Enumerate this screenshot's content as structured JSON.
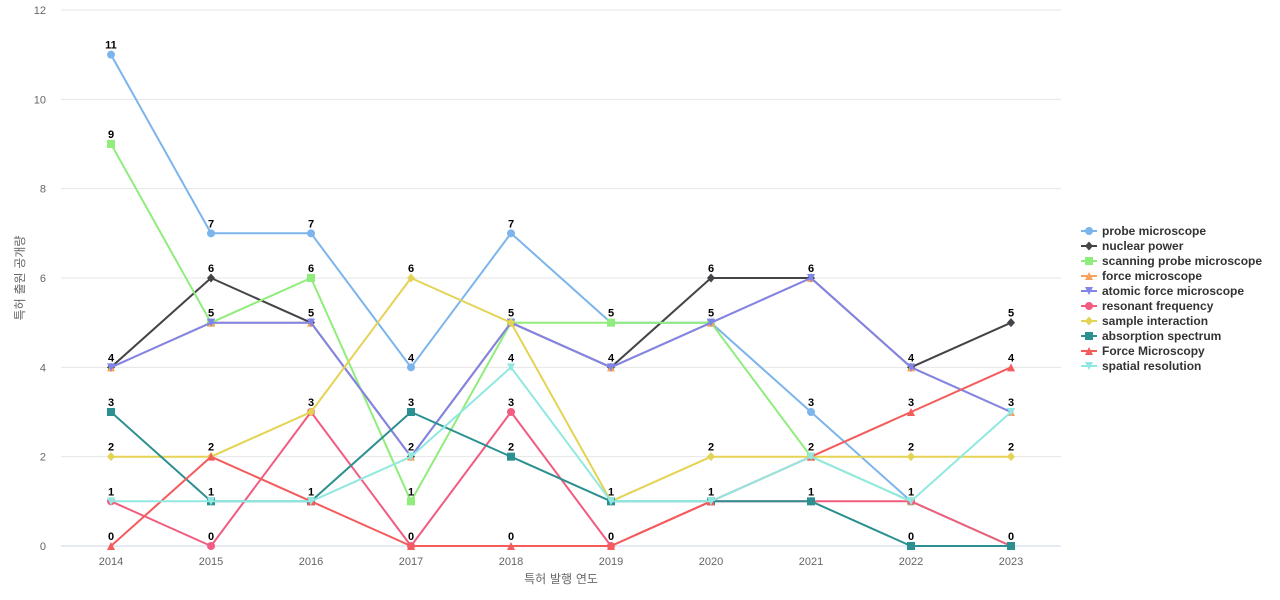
{
  "chart_data": {
    "type": "line",
    "xlabel": "특허 발행 연도",
    "ylabel": "특허 출원 공개량",
    "x": [
      "2014",
      "2015",
      "2016",
      "2017",
      "2018",
      "2019",
      "2020",
      "2021",
      "2022",
      "2023"
    ],
    "ylim": [
      0,
      12
    ],
    "yticks": [
      0,
      2,
      4,
      6,
      8,
      10,
      12
    ],
    "grid": true,
    "legend_position": "right",
    "series": [
      {
        "name": "probe microscope",
        "color": "#7cb5ec",
        "marker": "circle",
        "values": [
          11,
          7,
          7,
          4,
          7,
          5,
          5,
          3,
          1,
          0
        ]
      },
      {
        "name": "nuclear power",
        "color": "#434348",
        "marker": "diamond",
        "values": [
          4,
          6,
          5,
          2,
          5,
          4,
          6,
          6,
          4,
          5
        ]
      },
      {
        "name": "scanning probe microscope",
        "color": "#90ed7d",
        "marker": "square",
        "values": [
          9,
          5,
          6,
          1,
          5,
          5,
          5,
          2,
          1,
          0
        ]
      },
      {
        "name": "force microscope",
        "color": "#f7a35c",
        "marker": "triangle",
        "values": [
          4,
          5,
          5,
          2,
          5,
          4,
          5,
          6,
          4,
          3
        ]
      },
      {
        "name": "atomic force microscope",
        "color": "#8085e9",
        "marker": "triangle-down",
        "values": [
          4,
          5,
          5,
          2,
          5,
          4,
          5,
          6,
          4,
          3
        ]
      },
      {
        "name": "resonant frequency",
        "color": "#f15c80",
        "marker": "circle",
        "values": [
          1,
          0,
          3,
          0,
          3,
          0,
          1,
          1,
          1,
          0
        ]
      },
      {
        "name": "sample interaction",
        "color": "#e4d354",
        "marker": "diamond",
        "values": [
          2,
          2,
          3,
          6,
          5,
          1,
          2,
          2,
          2,
          2
        ]
      },
      {
        "name": "absorption spectrum",
        "color": "#2b908f",
        "marker": "square",
        "values": [
          3,
          1,
          1,
          3,
          2,
          1,
          1,
          1,
          0,
          0
        ]
      },
      {
        "name": "Force Microscopy",
        "color": "#f45b5b",
        "marker": "triangle",
        "values": [
          0,
          2,
          1,
          0,
          0,
          0,
          1,
          2,
          3,
          4
        ]
      },
      {
        "name": "spatial resolution",
        "color": "#91e8e1",
        "marker": "triangle-down",
        "values": [
          1,
          1,
          1,
          2,
          4,
          1,
          1,
          2,
          1,
          3
        ]
      }
    ],
    "data_labels": [
      {
        "x": "2014",
        "labels": [
          "11",
          "9",
          "4",
          "3",
          "2",
          "1",
          "0"
        ]
      },
      {
        "x": "2015",
        "labels": [
          "7",
          "6",
          "5",
          "2",
          "1",
          "0"
        ]
      },
      {
        "x": "2016",
        "labels": [
          "7",
          "6",
          "5",
          "3",
          "1"
        ]
      },
      {
        "x": "2017",
        "labels": [
          "6",
          "4",
          "3",
          "2",
          "1",
          "0"
        ]
      },
      {
        "x": "2018",
        "labels": [
          "7",
          "5",
          "4",
          "3",
          "2",
          "0"
        ]
      },
      {
        "x": "2019",
        "labels": [
          "5",
          "4",
          "1",
          "0"
        ]
      },
      {
        "x": "2020",
        "labels": [
          "6",
          "5",
          "2",
          "1"
        ]
      },
      {
        "x": "2021",
        "labels": [
          "6",
          "3",
          "2",
          "1"
        ]
      },
      {
        "x": "2022",
        "labels": [
          "4",
          "3",
          "2",
          "1",
          "0"
        ]
      },
      {
        "x": "2023",
        "labels": [
          "5",
          "4",
          "3",
          "2",
          "0"
        ]
      }
    ]
  }
}
